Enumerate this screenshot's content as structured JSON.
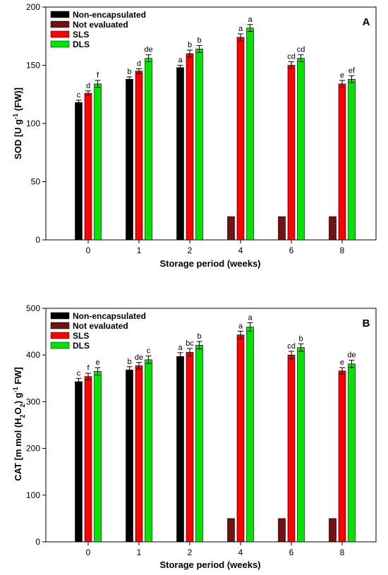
{
  "colors": {
    "non_encapsulated": "#000000",
    "not_evaluated_a": "#000000",
    "not_evaluated_b": "#e00000",
    "sls": "#ff0000",
    "dls": "#00e600"
  },
  "legend": [
    "Non-encapsulated",
    "Not evaluated",
    "SLS",
    "DLS"
  ],
  "chart_data": [
    {
      "type": "bar",
      "panel_label": "A",
      "title": "",
      "xlabel": "Storage period (weeks)",
      "ylabel_parts": {
        "main": "SOD [U g",
        "sup": "-1",
        "tail": " (FW)]"
      },
      "ylim": [
        0,
        200
      ],
      "yticks": [
        0,
        50,
        100,
        150,
        200
      ],
      "categories": [
        "0",
        "1",
        "2",
        "4",
        "6",
        "8"
      ],
      "series": [
        {
          "name": "Non-encapsulated",
          "values": [
            118,
            138,
            148,
            null,
            null,
            null
          ],
          "errors": [
            2,
            2,
            2,
            null,
            null,
            null
          ],
          "letters": [
            "c",
            "b",
            "a",
            "",
            "",
            ""
          ]
        },
        {
          "name": "Not evaluated",
          "values": [
            null,
            null,
            null,
            20,
            20,
            20
          ]
        },
        {
          "name": "SLS",
          "values": [
            126,
            145,
            160,
            174,
            150,
            134
          ],
          "errors": [
            2,
            2,
            3,
            3,
            3,
            3
          ],
          "letters": [
            "d",
            "d",
            "b",
            "a",
            "cd",
            "e"
          ]
        },
        {
          "name": "DLS",
          "values": [
            134,
            156,
            164,
            182,
            156,
            138
          ],
          "errors": [
            3,
            3,
            3,
            3,
            3,
            3
          ],
          "letters": [
            "f",
            "de",
            "b",
            "a",
            "cd",
            "ef"
          ]
        }
      ],
      "legend_position": "top-left"
    },
    {
      "type": "bar",
      "panel_label": "B",
      "title": "",
      "xlabel": "Storage period (weeks)",
      "ylabel_parts": {
        "main": "CAT [m mol (H",
        "sub": "2",
        "mid": "O",
        "sub2": "2",
        "tail": ") g",
        "sup": "-1",
        "tail2": " FW]"
      },
      "ylim": [
        0,
        500
      ],
      "yticks": [
        0,
        100,
        200,
        300,
        400,
        500
      ],
      "categories": [
        "0",
        "1",
        "2",
        "4",
        "6",
        "8"
      ],
      "series": [
        {
          "name": "Non-encapsulated",
          "values": [
            343,
            368,
            397,
            null,
            null,
            null
          ],
          "errors": [
            7,
            7,
            8,
            null,
            null,
            null
          ],
          "letters": [
            "c",
            "b",
            "a",
            "",
            "",
            ""
          ]
        },
        {
          "name": "Not evaluated",
          "values": [
            null,
            null,
            null,
            50,
            50,
            50
          ]
        },
        {
          "name": "SLS",
          "values": [
            354,
            377,
            406,
            443,
            400,
            366
          ],
          "errors": [
            7,
            7,
            8,
            8,
            8,
            7
          ],
          "letters": [
            "f",
            "de",
            "bc",
            "a",
            "cd",
            "e"
          ]
        },
        {
          "name": "DLS",
          "values": [
            365,
            390,
            421,
            460,
            416,
            381
          ],
          "errors": [
            8,
            8,
            8,
            9,
            8,
            8
          ],
          "letters": [
            "e",
            "c",
            "b",
            "a",
            "b",
            "de"
          ]
        }
      ],
      "legend_position": "top-left"
    }
  ]
}
